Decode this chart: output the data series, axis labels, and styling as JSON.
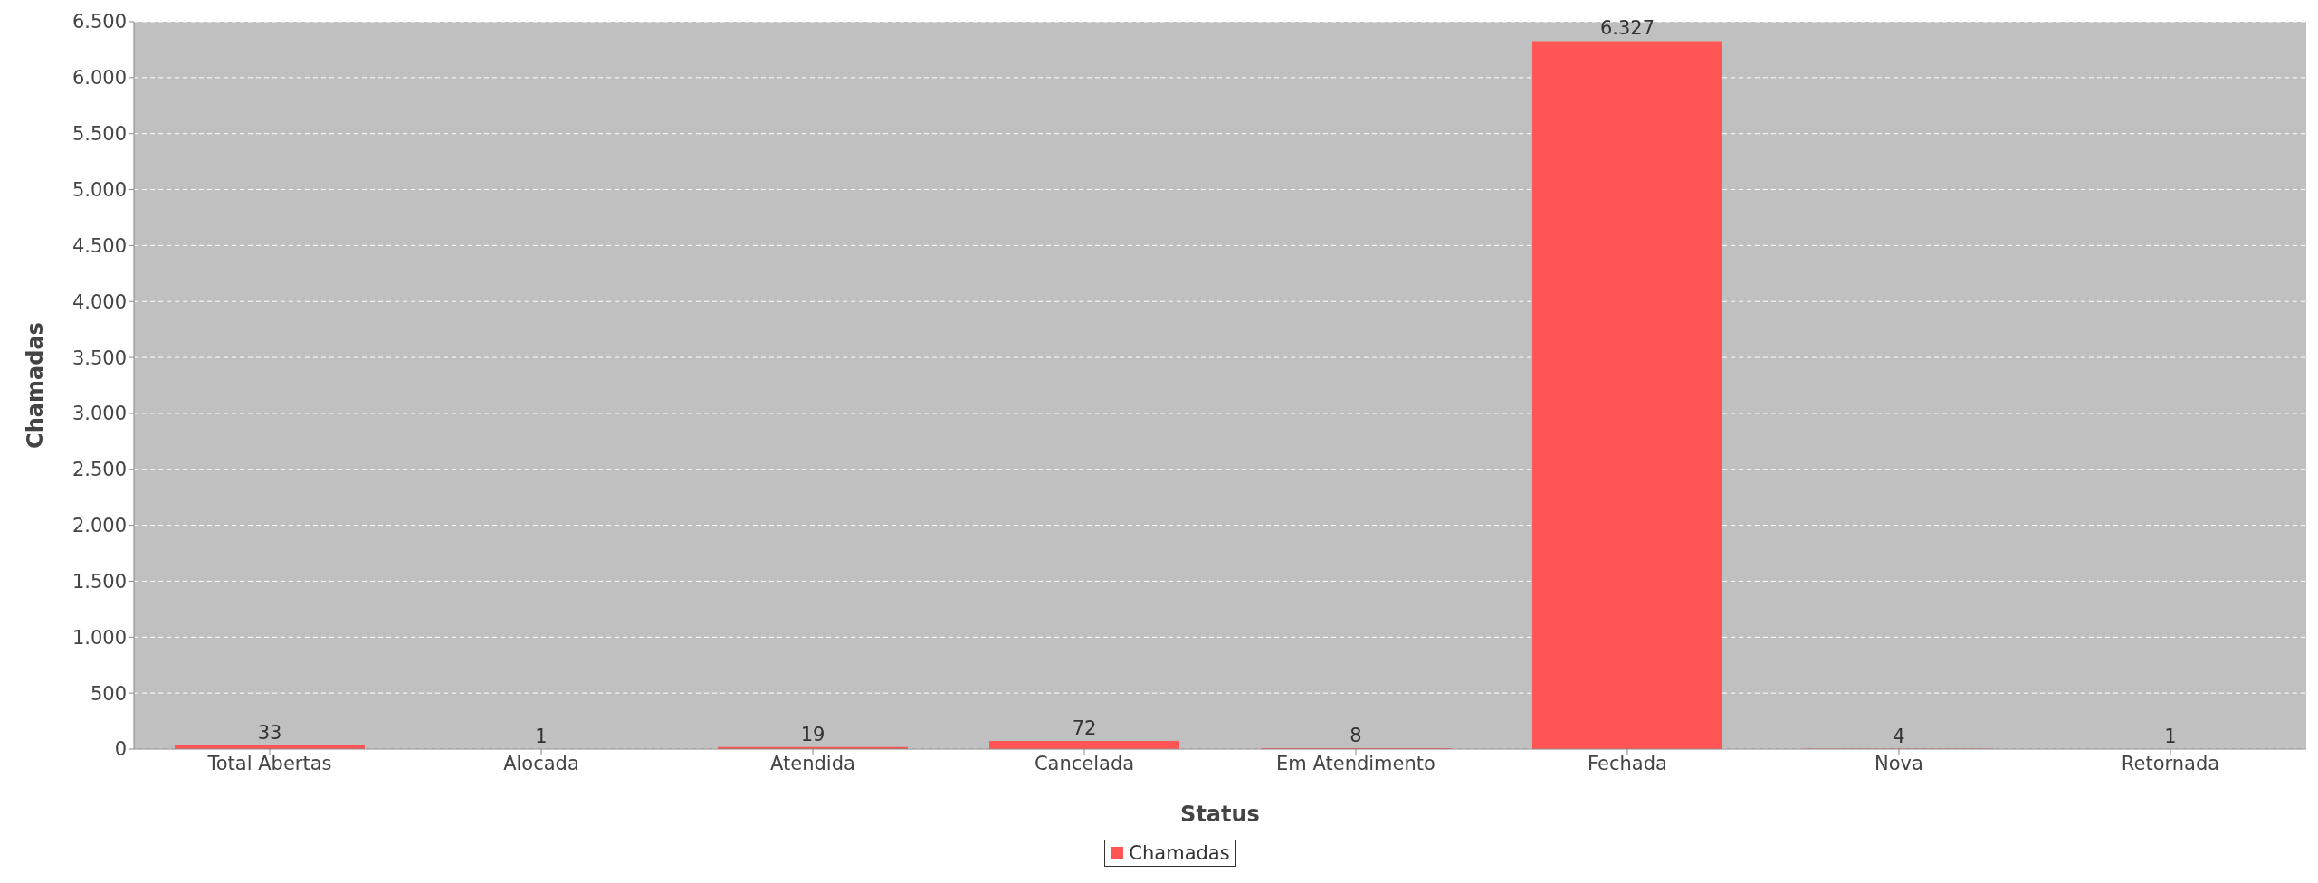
{
  "chart_data": {
    "type": "bar",
    "xlabel": "Status",
    "ylabel": "Chamadas",
    "categories": [
      "Total Abertas",
      "Alocada",
      "Atendida",
      "Cancelada",
      "Em Atendimento",
      "Fechada",
      "Nova",
      "Retornada"
    ],
    "series": [
      {
        "name": "Chamadas",
        "color": "#ff5555",
        "values": [
          33,
          1,
          19,
          72,
          8,
          6327,
          4,
          1
        ],
        "value_labels": [
          "33",
          "1",
          "19",
          "72",
          "8",
          "6.327",
          "4",
          "1"
        ]
      }
    ],
    "ylim": [
      0,
      6500
    ],
    "yticks": [
      {
        "value": 0,
        "label": "0"
      },
      {
        "value": 500,
        "label": "500"
      },
      {
        "value": 1000,
        "label": "1.000"
      },
      {
        "value": 1500,
        "label": "1.500"
      },
      {
        "value": 2000,
        "label": "2.000"
      },
      {
        "value": 2500,
        "label": "2.500"
      },
      {
        "value": 3000,
        "label": "3.000"
      },
      {
        "value": 3500,
        "label": "3.500"
      },
      {
        "value": 4000,
        "label": "4.000"
      },
      {
        "value": 4500,
        "label": "4.500"
      },
      {
        "value": 5000,
        "label": "5.000"
      },
      {
        "value": 5500,
        "label": "5.500"
      },
      {
        "value": 6000,
        "label": "6.000"
      },
      {
        "value": 6500,
        "label": "6.500"
      }
    ],
    "grid": "y",
    "legend": "bottom"
  }
}
